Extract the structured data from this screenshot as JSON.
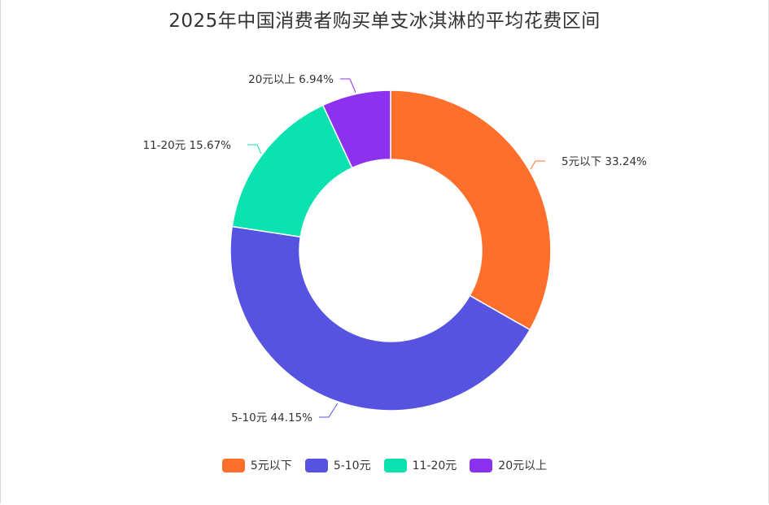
{
  "title": "2025年中国消费者购买单支冰淇淋的平均花费区间",
  "chart_data": {
    "type": "pie",
    "donut": true,
    "title": "2025年中国消费者购买单支冰淇淋的平均花费区间",
    "categories": [
      "5元以下",
      "5-10元",
      "11-20元",
      "20元以上"
    ],
    "values": [
      33.24,
      44.15,
      15.67,
      6.94
    ],
    "labels": [
      "5元以下 33.24%",
      "5-10元 44.15%",
      "11-20元 15.67%",
      "20元以上 6.94%"
    ],
    "colors": [
      "#ff6f2c",
      "#5553e0",
      "#0ce2b0",
      "#8c32ef"
    ],
    "legend_position": "bottom"
  }
}
